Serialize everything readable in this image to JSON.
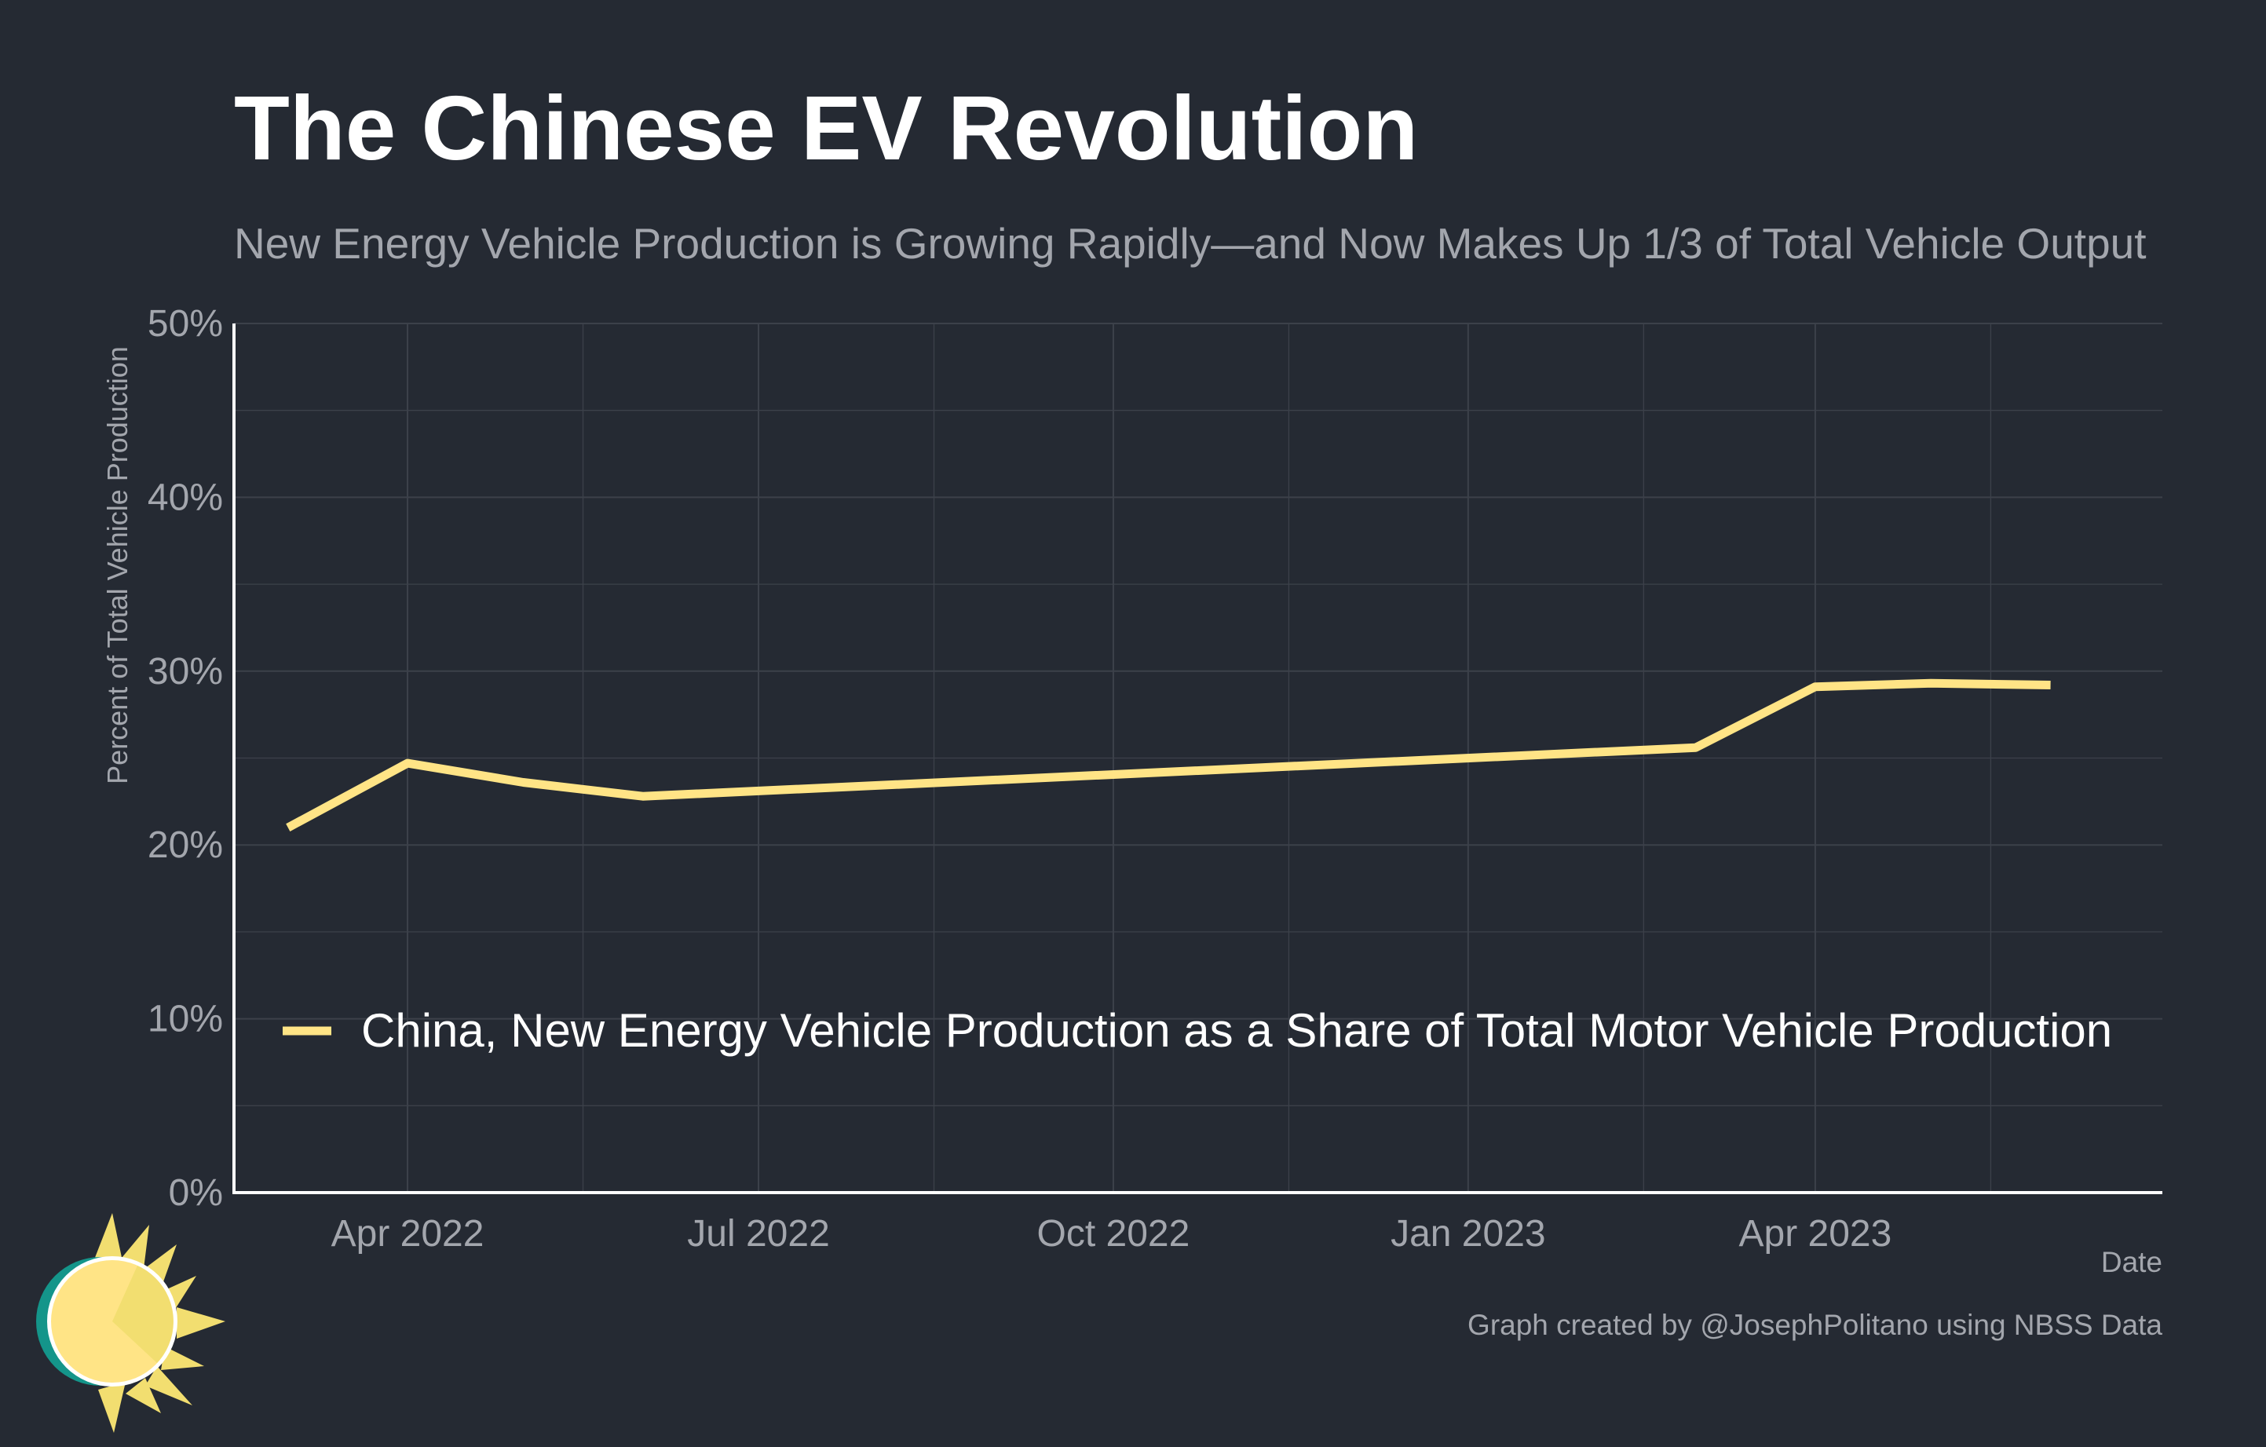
{
  "title": "The Chinese EV Revolution",
  "subtitle": "New Energy Vehicle Production is Growing Rapidly—and Now Makes Up 1/3 of Total Vehicle Output",
  "footer": {
    "xlabel": "Date",
    "credit": "Graph created by @JosephPolitano using NBSS Data"
  },
  "colors": {
    "background": "#252a33",
    "series": "#ffe486",
    "grid": "#3c414a",
    "axis": "#ffffff",
    "muted_text": "#a3a6ad"
  },
  "logo": {
    "icon": "sun-icon"
  },
  "chart_data": {
    "type": "line",
    "title": "The Chinese EV Revolution",
    "subtitle": "New Energy Vehicle Production is Growing Rapidly—and Now Makes Up 1/3 of Total Vehicle Output",
    "xlabel": "Date",
    "ylabel": "Percent of Total Vehicle Production",
    "ylim": [
      0,
      50
    ],
    "y_ticks": [
      "0%",
      "10%",
      "20%",
      "30%",
      "40%",
      "50%"
    ],
    "y_tick_values": [
      0,
      10,
      20,
      30,
      40,
      50
    ],
    "x_range": [
      "2022-02-15",
      "2023-06-30"
    ],
    "x_ticks": [
      "Apr 2022",
      "Jul 2022",
      "Oct 2022",
      "Jan 2023",
      "Apr 2023"
    ],
    "x_tick_dates": [
      "2022-04-01",
      "2022-07-01",
      "2022-10-01",
      "2023-01-01",
      "2023-04-01"
    ],
    "grid": true,
    "legend_position": "bottom-left",
    "series": [
      {
        "name": "China, New Energy Vehicle Production as a Share of Total Motor Vehicle Production",
        "x": [
          "2022-03-01",
          "2022-04-01",
          "2022-05-01",
          "2022-06-01",
          "2023-03-01",
          "2023-04-01",
          "2023-05-01",
          "2023-06-01"
        ],
        "values": [
          21.0,
          24.7,
          23.6,
          22.8,
          25.6,
          29.1,
          29.3,
          29.2
        ]
      }
    ]
  }
}
